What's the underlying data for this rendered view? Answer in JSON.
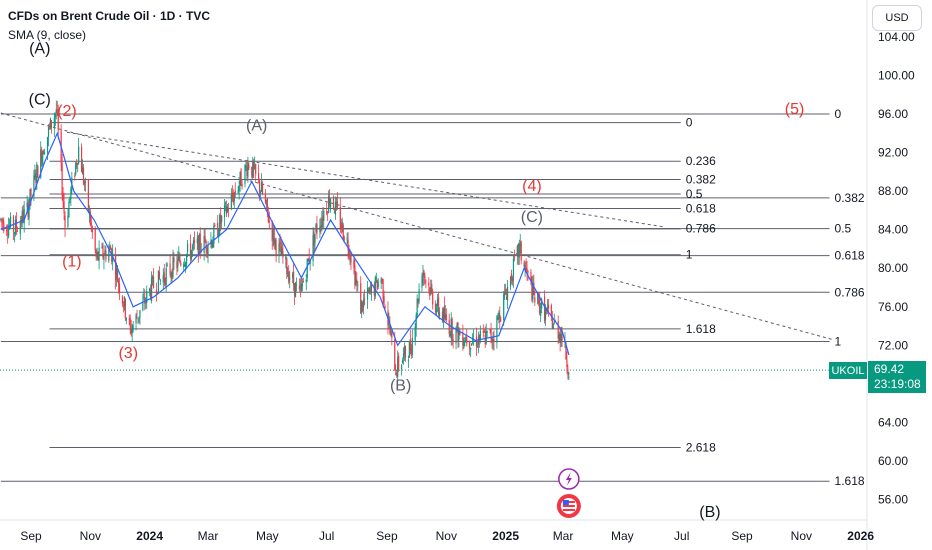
{
  "header": {
    "title": "CFDs on Brent Crude Oil · 1D · TVC",
    "indicator": "SMA (9, close)",
    "currency_button": "USD"
  },
  "price": {
    "symbol": "UKOIL",
    "last": "69.42",
    "countdown": "23:19:08",
    "last_value": 69.42
  },
  "colors": {
    "up": "#089981",
    "down": "#f23645",
    "sma": "#2962ff",
    "wave_red": "#e53935",
    "wave_gray": "#5d606b",
    "wave_black": "#131722"
  },
  "events": [
    {
      "icon": "lightning-icon",
      "x": "2025-03-07"
    },
    {
      "icon": "us-flag-icon",
      "x": "2025-03-07"
    }
  ],
  "chart_data": {
    "type": "candlestick",
    "xlabels": [
      "Sep",
      "Nov",
      "2024",
      "Mar",
      "May",
      "Jul",
      "Sep",
      "Nov",
      "2025",
      "Mar",
      "May",
      "Jul",
      "Sep",
      "Nov",
      "2026"
    ],
    "x_tick_dates": [
      "2023-09-01",
      "2023-11-01",
      "2024-01-01",
      "2024-03-01",
      "2024-05-01",
      "2024-07-01",
      "2024-09-01",
      "2024-11-01",
      "2025-01-01",
      "2025-03-01",
      "2025-05-01",
      "2025-07-01",
      "2025-09-01",
      "2025-11-01",
      "2026-01-01"
    ],
    "xlim": [
      "2023-08-01",
      "2026-01-15"
    ],
    "y_ticks": [
      "56.00",
      "60.00",
      "64.00",
      "68.00",
      "72.00",
      "76.00",
      "80.00",
      "84.00",
      "88.00",
      "92.00",
      "96.00",
      "100.00",
      "104.00"
    ],
    "ylim": [
      53.7,
      106.5
    ],
    "series": [
      {
        "name": "UKOIL",
        "points": [
          [
            "2023-08-01",
            85
          ],
          [
            "2023-08-15",
            84
          ],
          [
            "2023-08-28",
            86
          ],
          [
            "2023-09-12",
            92
          ],
          [
            "2023-09-27",
            96.5
          ],
          [
            "2023-10-06",
            84.5
          ],
          [
            "2023-10-20",
            92.5
          ],
          [
            "2023-11-07",
            81
          ],
          [
            "2023-11-22",
            82
          ],
          [
            "2023-12-12",
            73.5
          ],
          [
            "2024-01-03",
            78
          ],
          [
            "2024-01-24",
            80
          ],
          [
            "2024-02-14",
            82
          ],
          [
            "2024-03-05",
            83
          ],
          [
            "2024-03-20",
            86
          ],
          [
            "2024-04-12",
            91
          ],
          [
            "2024-04-25",
            88
          ],
          [
            "2024-05-08",
            83
          ],
          [
            "2024-06-03",
            77
          ],
          [
            "2024-06-20",
            84
          ],
          [
            "2024-07-05",
            87.5
          ],
          [
            "2024-07-25",
            82
          ],
          [
            "2024-08-05",
            76
          ],
          [
            "2024-08-26",
            79
          ],
          [
            "2024-09-10",
            69.5
          ],
          [
            "2024-09-26",
            72
          ],
          [
            "2024-10-07",
            80
          ],
          [
            "2024-10-22",
            76
          ],
          [
            "2024-11-08",
            73.5
          ],
          [
            "2024-11-28",
            72.5
          ],
          [
            "2024-12-19",
            73
          ],
          [
            "2025-01-15",
            82
          ],
          [
            "2025-01-30",
            77
          ],
          [
            "2025-02-14",
            75
          ],
          [
            "2025-02-28",
            73
          ],
          [
            "2025-03-07",
            69.42
          ]
        ]
      },
      {
        "name": "SMA (9, close)",
        "points": [
          [
            "2023-08-01",
            84
          ],
          [
            "2023-08-25",
            85
          ],
          [
            "2023-09-15",
            91
          ],
          [
            "2023-09-28",
            94
          ],
          [
            "2023-10-15",
            88
          ],
          [
            "2023-11-05",
            85
          ],
          [
            "2023-11-25",
            81
          ],
          [
            "2023-12-15",
            76
          ],
          [
            "2024-01-05",
            77
          ],
          [
            "2024-01-30",
            79
          ],
          [
            "2024-02-25",
            82
          ],
          [
            "2024-03-20",
            84
          ],
          [
            "2024-04-15",
            89
          ],
          [
            "2024-05-05",
            85
          ],
          [
            "2024-06-05",
            79
          ],
          [
            "2024-07-05",
            85
          ],
          [
            "2024-07-30",
            81
          ],
          [
            "2024-08-25",
            77
          ],
          [
            "2024-09-12",
            72
          ],
          [
            "2024-10-10",
            76
          ],
          [
            "2024-11-05",
            74
          ],
          [
            "2024-12-01",
            72.5
          ],
          [
            "2024-12-25",
            73
          ],
          [
            "2025-01-20",
            80
          ],
          [
            "2025-02-10",
            76
          ],
          [
            "2025-02-28",
            73.5
          ],
          [
            "2025-03-07",
            71
          ]
        ]
      }
    ],
    "h_levels": [
      {
        "y": 95.1,
        "x0": "2023-09-20",
        "x1": "2025-06-30",
        "label": "0"
      },
      {
        "y": 91.1,
        "x0": "2023-09-20",
        "x1": "2025-06-30",
        "label": "0.236"
      },
      {
        "y": 89.2,
        "x0": "2023-09-20",
        "x1": "2025-06-30",
        "label": "0.382"
      },
      {
        "y": 87.7,
        "x0": "2023-09-20",
        "x1": "2025-06-30",
        "label": "0.5"
      },
      {
        "y": 86.2,
        "x0": "2023-09-20",
        "x1": "2025-06-30",
        "label": "0.618"
      },
      {
        "y": 84.1,
        "x0": "2023-09-20",
        "x1": "2025-06-30",
        "label": "0.786"
      },
      {
        "y": 81.4,
        "x0": "2023-09-20",
        "x1": "2025-06-30",
        "label": "1"
      },
      {
        "y": 73.7,
        "x0": "2023-09-20",
        "x1": "2025-06-30",
        "label": "1.618"
      },
      {
        "y": 61.4,
        "x0": "2023-09-20",
        "x1": "2025-06-30",
        "label": "2.618"
      },
      {
        "y": 96.0,
        "x0": "2023-08-01",
        "x1": "2025-11-30",
        "label": "0"
      },
      {
        "y": 87.3,
        "x0": "2023-08-01",
        "x1": "2025-11-30",
        "label": "0.382"
      },
      {
        "y": 84.1,
        "x0": "2023-08-01",
        "x1": "2025-11-30",
        "label": "0.5"
      },
      {
        "y": 81.3,
        "x0": "2023-08-01",
        "x1": "2025-11-30",
        "label": "0.618"
      },
      {
        "y": 77.5,
        "x0": "2023-08-01",
        "x1": "2025-11-30",
        "label": "0.786"
      },
      {
        "y": 72.4,
        "x0": "2023-08-01",
        "x1": "2025-11-30",
        "label": "1"
      },
      {
        "y": 57.9,
        "x0": "2023-08-01",
        "x1": "2025-11-30",
        "label": "1.618"
      }
    ],
    "trendlines": [
      {
        "x0": "2023-08-01",
        "y0": 96.1,
        "x1": "2025-12-03",
        "y1": 72.6
      },
      {
        "x0": "2023-10-08",
        "y0": 94.1,
        "x1": "2025-06-12",
        "y1": 84.3
      }
    ],
    "wave_labels": [
      {
        "text": "(A)",
        "x": "2023-09-10",
        "y": 102.3,
        "color": "wave_black"
      },
      {
        "text": "(C)",
        "x": "2023-09-10",
        "y": 97.0,
        "color": "wave_black"
      },
      {
        "text": "(2)",
        "x": "2023-10-08",
        "y": 95.8,
        "color": "wave_red"
      },
      {
        "text": "(1)",
        "x": "2023-10-13",
        "y": 80.2,
        "color": "wave_red"
      },
      {
        "text": "(3)",
        "x": "2023-12-10",
        "y": 70.7,
        "color": "wave_red"
      },
      {
        "text": "(A)",
        "x": "2024-04-20",
        "y": 94.3,
        "color": "wave_gray"
      },
      {
        "text": "(B)",
        "x": "2024-09-15",
        "y": 67.3,
        "color": "wave_gray"
      },
      {
        "text": "(4)",
        "x": "2025-01-28",
        "y": 88.0,
        "color": "wave_red"
      },
      {
        "text": "(C)",
        "x": "2025-01-28",
        "y": 84.8,
        "color": "wave_gray"
      },
      {
        "text": "(5)",
        "x": "2025-10-25",
        "y": 96.0,
        "color": "wave_red"
      },
      {
        "text": "(B)",
        "x": "2025-07-30",
        "y": 54.2,
        "color": "wave_black"
      }
    ]
  }
}
